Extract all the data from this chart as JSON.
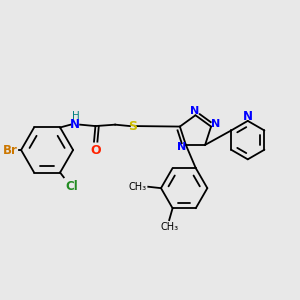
{
  "bg_color": "#e8e8e8",
  "bond_color": "#000000",
  "bond_width": 1.3,
  "figsize": [
    3.0,
    3.0
  ],
  "dpi": 100,
  "colors": {
    "Br": "#cc7700",
    "Cl": "#228B22",
    "NH": "#008080",
    "H": "#008080",
    "O": "#ff2200",
    "S": "#ccbb00",
    "N": "#0000ff",
    "C": "#000000"
  }
}
